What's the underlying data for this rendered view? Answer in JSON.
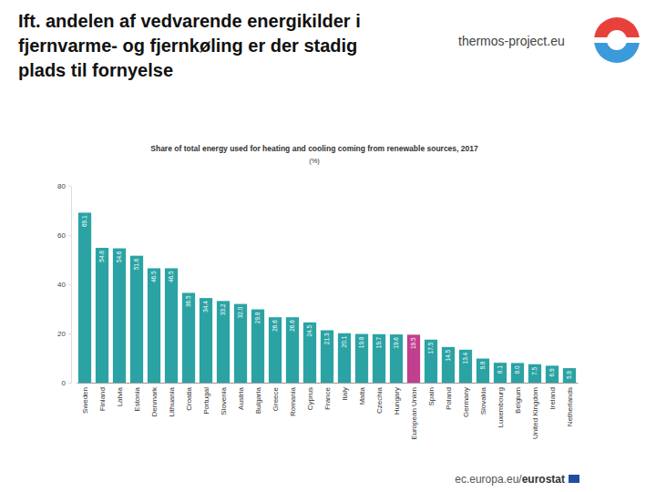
{
  "heading": [
    "Ift. andelen af vedvarende energikilder i",
    "fjernvarme- og fjernkøling er der stadig",
    "plads til fornyelse"
  ],
  "source": "thermos-project.eu",
  "footer": {
    "site": "ec.europa.eu/",
    "brand": "eurostat"
  },
  "chart_data": {
    "type": "bar",
    "title": "Share of total energy used for heating and cooling coming from renewable sources, 2017",
    "subtitle": "(%)",
    "categories": [
      "Sweden",
      "Finland",
      "Latvia",
      "Estonia",
      "Denmark",
      "Lithuania",
      "Croatia",
      "Portugal",
      "Slovenia",
      "Austria",
      "Bulgaria",
      "Greece",
      "Romania",
      "Cyprus",
      "France",
      "Italy",
      "Malta",
      "Czechia",
      "Hungary",
      "European Union",
      "Spain",
      "Poland",
      "Germany",
      "Slovakia",
      "Luxembourg",
      "Belgium",
      "United Kingdom",
      "Ireland",
      "Netherlands"
    ],
    "values": [
      69.1,
      54.8,
      54.6,
      51.6,
      46.5,
      46.5,
      36.5,
      34.4,
      33.2,
      32.0,
      29.8,
      26.6,
      26.6,
      24.5,
      21.3,
      20.1,
      19.8,
      19.7,
      19.6,
      19.5,
      17.5,
      14.5,
      13.4,
      9.8,
      8.1,
      8.0,
      7.5,
      6.9,
      5.9
    ],
    "value_labels": [
      "69.1",
      "54.8",
      "54.6",
      "51.6",
      "46.5",
      "46.5",
      "36.5",
      "34.4",
      "33.2",
      "32.0",
      "29.8",
      "26.6",
      "26.6",
      "24.5",
      "21.3",
      "20.1",
      "19.8",
      "19.7",
      "19.6",
      "19.5",
      "17.5",
      "14.5",
      "13.4",
      "9.8",
      "8.1",
      "8.0",
      "7.5",
      "6.9",
      "5.9"
    ],
    "colors": [
      "#2ba3a4",
      "#2ba3a4",
      "#2ba3a4",
      "#2ba3a4",
      "#2ba3a4",
      "#2ba3a4",
      "#2ba3a4",
      "#2ba3a4",
      "#2ba3a4",
      "#2ba3a4",
      "#2ba3a4",
      "#2ba3a4",
      "#2ba3a4",
      "#2ba3a4",
      "#2ba3a4",
      "#2ba3a4",
      "#2ba3a4",
      "#2ba3a4",
      "#2ba3a4",
      "#c13f8f",
      "#2ba3a4",
      "#2ba3a4",
      "#2ba3a4",
      "#2ba3a4",
      "#2ba3a4",
      "#2ba3a4",
      "#2ba3a4",
      "#2ba3a4",
      "#2ba3a4"
    ],
    "ylim": [
      0,
      80
    ],
    "yticks": [
      0,
      20,
      40,
      60,
      80
    ],
    "grid": false,
    "data_labels": true
  }
}
